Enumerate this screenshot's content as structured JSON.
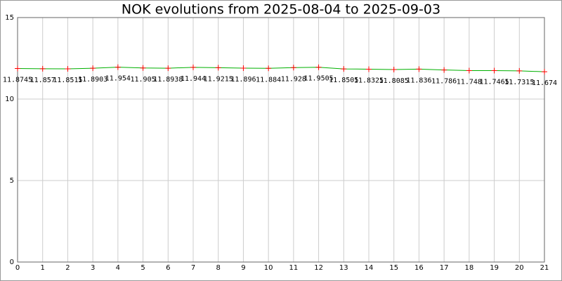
{
  "chart_data": {
    "type": "line",
    "title": "NOK evolutions from 2025-08-04 to 2025-09-03",
    "x": [
      0,
      1,
      2,
      3,
      4,
      5,
      6,
      7,
      8,
      9,
      10,
      11,
      12,
      13,
      14,
      15,
      16,
      17,
      18,
      19,
      20,
      21
    ],
    "values": [
      11.8745,
      11.857,
      11.8515,
      11.8903,
      11.954,
      11.905,
      11.8938,
      11.944,
      11.9215,
      11.896,
      11.884,
      11.928,
      11.9505,
      11.8505,
      11.8325,
      11.8085,
      11.836,
      11.786,
      11.748,
      11.7465,
      11.7315,
      11.674
    ],
    "color": "#00b000",
    "marker_color": "#ff0000",
    "xlim": [
      0,
      21
    ],
    "xticks": [
      0,
      1,
      2,
      3,
      4,
      5,
      6,
      7,
      8,
      9,
      10,
      11,
      12,
      13,
      14,
      15,
      16,
      17,
      18,
      19,
      20,
      21
    ],
    "ylim": [
      0,
      15
    ],
    "yticks": [
      0,
      5,
      10,
      15
    ],
    "grid": true
  }
}
